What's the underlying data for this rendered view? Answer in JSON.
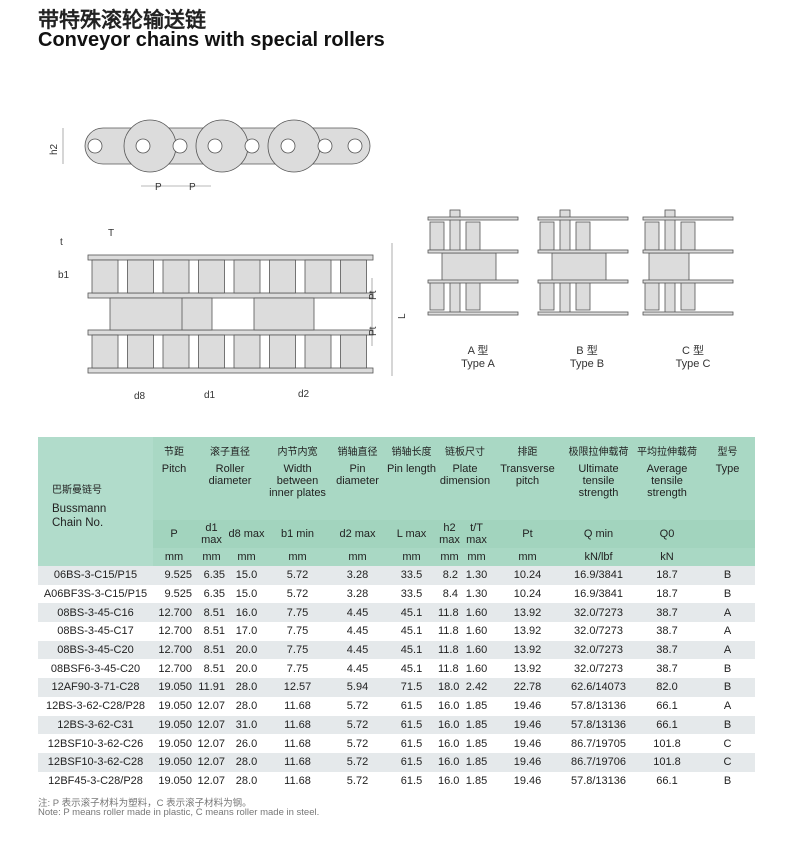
{
  "title_cn": "带特殊滚轮输送链",
  "title_en": "Conveyor chains with special rollers",
  "diagram_labels": {
    "h2": "h2",
    "p1": "P",
    "p2": "P",
    "t": "t",
    "T": "T",
    "b1": "b1",
    "pt1": "Pt",
    "pt2": "Pt",
    "L": "L",
    "d8": "d8",
    "d1": "d1",
    "d2": "d2"
  },
  "types": [
    {
      "cn": "A 型",
      "en": "Type A"
    },
    {
      "cn": "B 型",
      "en": "Type B"
    },
    {
      "cn": "C 型",
      "en": "Type C"
    }
  ],
  "header": {
    "chain_no": {
      "cn": "巴斯曼链号",
      "en1": "Bussmann",
      "en2": "Chain No."
    },
    "groups": [
      {
        "cn": "节距",
        "en": "Pitch"
      },
      {
        "cn": "滚子直径",
        "en": "Roller diameter"
      },
      {
        "cn": "内节内宽",
        "en": "Width between inner plates"
      },
      {
        "cn": "销轴直径",
        "en": "Pin diameter"
      },
      {
        "cn": "销轴长度",
        "en": "Pin length"
      },
      {
        "cn": "链板尺寸",
        "en": "Plate dimension"
      },
      {
        "cn": "排距",
        "en": "Transverse pitch"
      },
      {
        "cn": "极限拉伸载荷",
        "en": "Ultimate tensile strength"
      },
      {
        "cn": "平均拉伸载荷",
        "en": "Average tensile strength"
      },
      {
        "cn": "型号",
        "en": "Type"
      }
    ],
    "symbols": [
      "P",
      "d1 max",
      "d8 max",
      "b1 min",
      "d2 max",
      "L max",
      "h2 max",
      "t/T max",
      "Pt",
      "Q min",
      "Q0",
      ""
    ],
    "units": [
      "mm",
      "mm",
      "mm",
      "mm",
      "mm",
      "mm",
      "mm",
      "mm",
      "mm",
      "kN/lbf",
      "kN",
      ""
    ]
  },
  "rows": [
    [
      "06BS-3-C15/P15",
      "9.525",
      "6.35",
      "15.0",
      "5.72",
      "3.28",
      "33.5",
      "8.2",
      "1.30",
      "10.24",
      "16.9/3841",
      "18.7",
      "B"
    ],
    [
      "A06BF3S-3-C15/P15",
      "9.525",
      "6.35",
      "15.0",
      "5.72",
      "3.28",
      "33.5",
      "8.4",
      "1.30",
      "10.24",
      "16.9/3841",
      "18.7",
      "B"
    ],
    [
      "08BS-3-45-C16",
      "12.700",
      "8.51",
      "16.0",
      "7.75",
      "4.45",
      "45.1",
      "11.8",
      "1.60",
      "13.92",
      "32.0/7273",
      "38.7",
      "A"
    ],
    [
      "08BS-3-45-C17",
      "12.700",
      "8.51",
      "17.0",
      "7.75",
      "4.45",
      "45.1",
      "11.8",
      "1.60",
      "13.92",
      "32.0/7273",
      "38.7",
      "A"
    ],
    [
      "08BS-3-45-C20",
      "12.700",
      "8.51",
      "20.0",
      "7.75",
      "4.45",
      "45.1",
      "11.8",
      "1.60",
      "13.92",
      "32.0/7273",
      "38.7",
      "A"
    ],
    [
      "08BSF6-3-45-C20",
      "12.700",
      "8.51",
      "20.0",
      "7.75",
      "4.45",
      "45.1",
      "11.8",
      "1.60",
      "13.92",
      "32.0/7273",
      "38.7",
      "B"
    ],
    [
      "12AF90-3-71-C28",
      "19.050",
      "11.91",
      "28.0",
      "12.57",
      "5.94",
      "71.5",
      "18.0",
      "2.42",
      "22.78",
      "62.6/14073",
      "82.0",
      "B"
    ],
    [
      "12BS-3-62-C28/P28",
      "19.050",
      "12.07",
      "28.0",
      "11.68",
      "5.72",
      "61.5",
      "16.0",
      "1.85",
      "19.46",
      "57.8/13136",
      "66.1",
      "A"
    ],
    [
      "12BS-3-62-C31",
      "19.050",
      "12.07",
      "31.0",
      "11.68",
      "5.72",
      "61.5",
      "16.0",
      "1.85",
      "19.46",
      "57.8/13136",
      "66.1",
      "B"
    ],
    [
      "12BSF10-3-62-C26",
      "19.050",
      "12.07",
      "26.0",
      "11.68",
      "5.72",
      "61.5",
      "16.0",
      "1.85",
      "19.46",
      "86.7/19705",
      "101.8",
      "C"
    ],
    [
      "12BSF10-3-62-C28",
      "19.050",
      "12.07",
      "28.0",
      "11.68",
      "5.72",
      "61.5",
      "16.0",
      "1.85",
      "19.46",
      "86.7/19706",
      "101.8",
      "C"
    ],
    [
      "12BF45-3-C28/P28",
      "19.050",
      "12.07",
      "28.0",
      "11.68",
      "5.72",
      "61.5",
      "16.0",
      "1.85",
      "19.46",
      "57.8/13136",
      "66.1",
      "B"
    ]
  ],
  "note_cn": "注: P 表示滚子材料为塑料，C 表示滚子材料为钢。",
  "note_en": "Note: P means roller made in plastic, C means roller made in steel."
}
